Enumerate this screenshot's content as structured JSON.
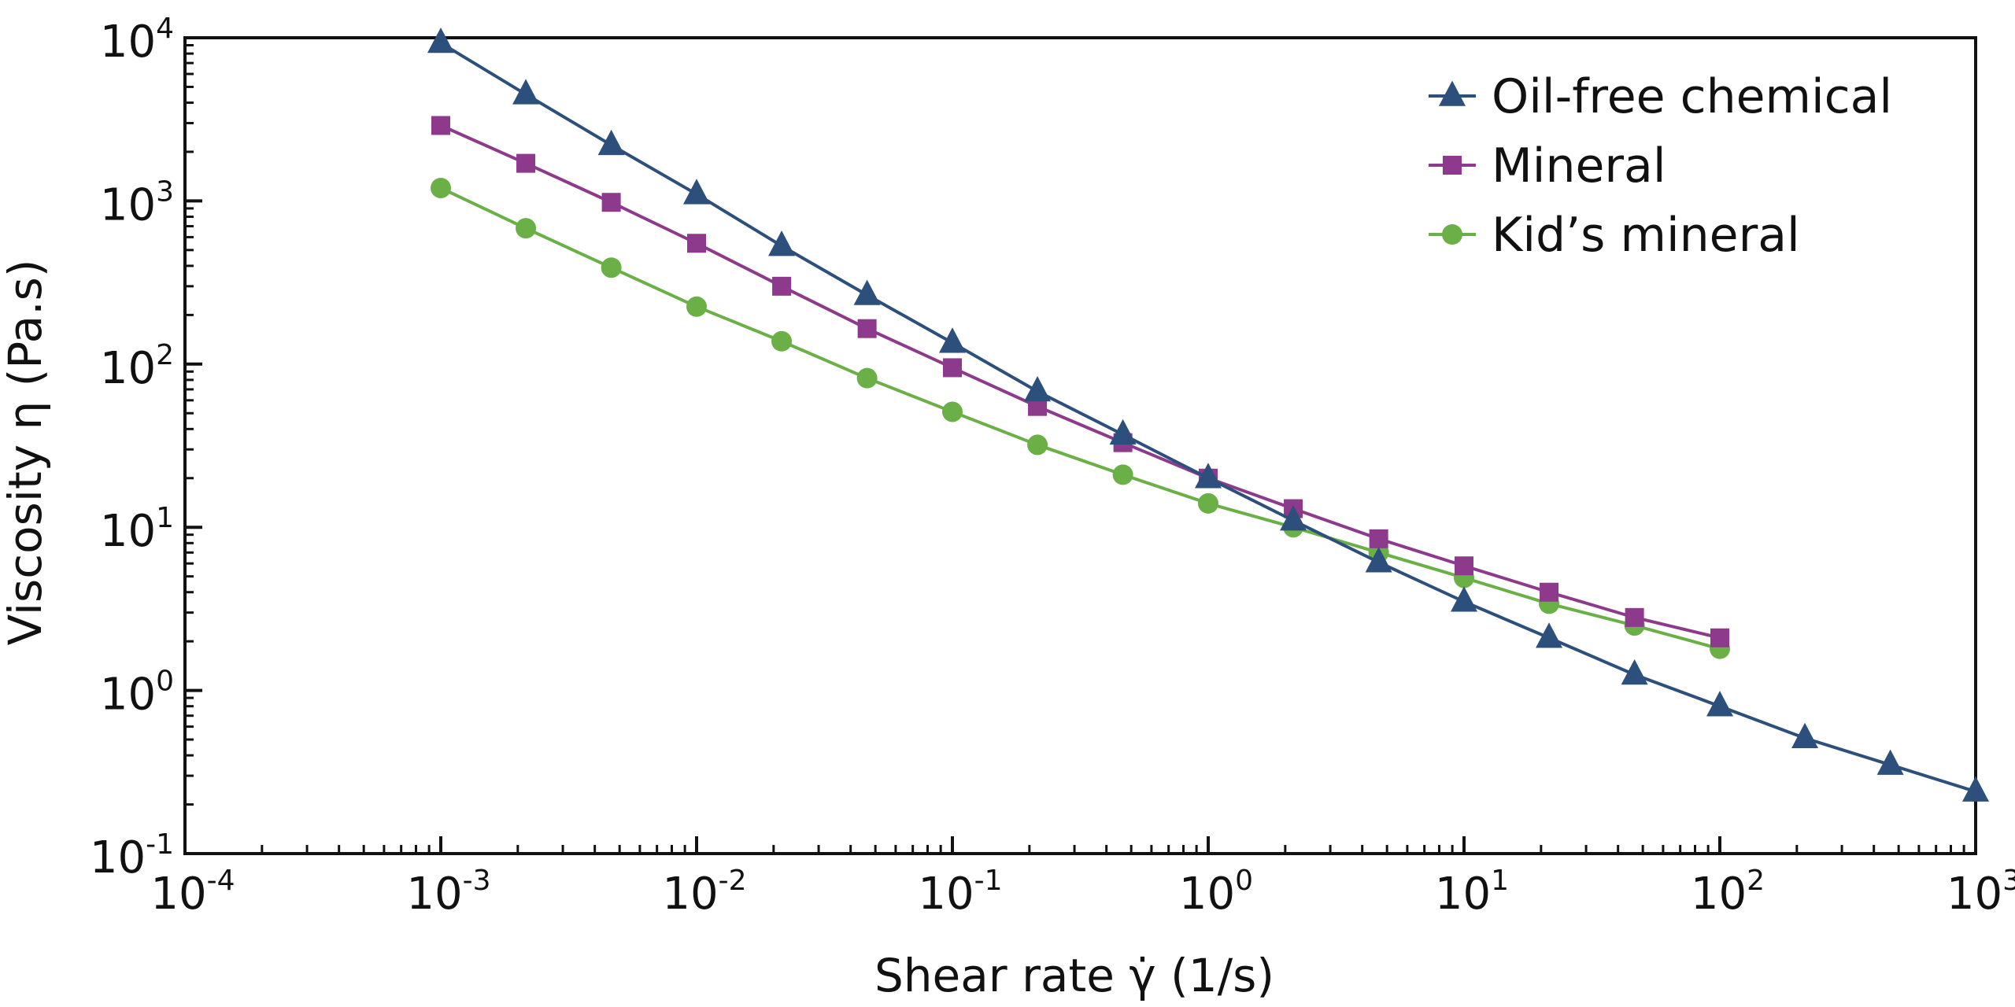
{
  "chart_data": {
    "type": "line",
    "title": "",
    "xlabel": "Shear rate γ̇ (1/s)",
    "ylabel": "Viscosity η (Pa.s)",
    "xscale": "log",
    "yscale": "log",
    "xlim": [
      0.0001,
      1000
    ],
    "ylim": [
      0.1,
      10000
    ],
    "x_ticks": [
      {
        "base": "10",
        "exp": "-4"
      },
      {
        "base": "10",
        "exp": "-3"
      },
      {
        "base": "10",
        "exp": "-2"
      },
      {
        "base": "10",
        "exp": "-1"
      },
      {
        "base": "10",
        "exp": "0"
      },
      {
        "base": "10",
        "exp": "1"
      },
      {
        "base": "10",
        "exp": "2"
      },
      {
        "base": "10",
        "exp": "3"
      }
    ],
    "y_ticks": [
      {
        "base": "10",
        "exp": "-1"
      },
      {
        "base": "10",
        "exp": "0"
      },
      {
        "base": "10",
        "exp": "1"
      },
      {
        "base": "10",
        "exp": "2"
      },
      {
        "base": "10",
        "exp": "3"
      },
      {
        "base": "10",
        "exp": "4"
      }
    ],
    "grid": false,
    "legend_position": "top-right",
    "series": [
      {
        "name": "Oil-free chemical",
        "color": "#2c4f7c",
        "marker": "triangle",
        "x": [
          0.001,
          0.00215,
          0.00464,
          0.01,
          0.0215,
          0.0464,
          0.1,
          0.215,
          0.464,
          1,
          2.15,
          4.64,
          10,
          21.5,
          46.4,
          100,
          215,
          464,
          1000
        ],
        "values": [
          9300,
          4500,
          2200,
          1100,
          530,
          265,
          135,
          68,
          37,
          20,
          11,
          6.1,
          3.5,
          2.1,
          1.25,
          0.8,
          0.51,
          0.35,
          0.24
        ]
      },
      {
        "name": "Mineral",
        "color": "#8e3a8c",
        "marker": "square",
        "x": [
          0.001,
          0.00215,
          0.00464,
          0.01,
          0.0215,
          0.0464,
          0.1,
          0.215,
          0.464,
          1,
          2.15,
          4.64,
          10,
          21.5,
          46.4,
          100
        ],
        "values": [
          2900,
          1700,
          980,
          550,
          300,
          165,
          95,
          55,
          33,
          20,
          13,
          8.5,
          5.8,
          4.0,
          2.8,
          2.1
        ]
      },
      {
        "name": "Kid’s mineral",
        "color": "#6ab046",
        "marker": "circle",
        "x": [
          0.001,
          0.00215,
          0.00464,
          0.01,
          0.0215,
          0.0464,
          0.1,
          0.215,
          0.464,
          1,
          2.15,
          4.64,
          10,
          21.5,
          46.4,
          100
        ],
        "values": [
          1200,
          680,
          390,
          225,
          138,
          82,
          51,
          32,
          21,
          14,
          10,
          7.0,
          4.9,
          3.4,
          2.5,
          1.8
        ]
      }
    ]
  }
}
